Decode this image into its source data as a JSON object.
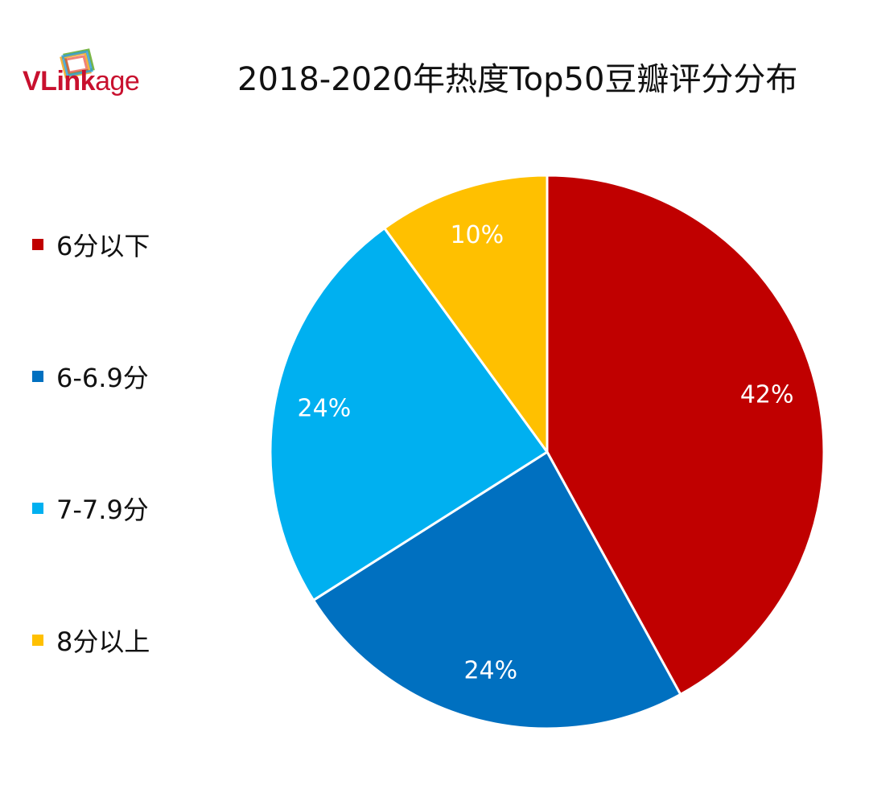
{
  "logo": {
    "brand_part1": "VLink",
    "brand_part2": "age"
  },
  "chart_data": {
    "type": "pie",
    "title": "2018-2020年热度Top50豆瓣评分分布",
    "legend_position": "left",
    "categories": [
      "6分以下",
      "6-6.9分",
      "7-7.9分",
      "8分以上"
    ],
    "values": [
      42,
      24,
      24,
      10
    ],
    "data_labels": [
      "42%",
      "24%",
      "24%",
      "10%"
    ],
    "colors": [
      "#c00000",
      "#0070c0",
      "#00b0f0",
      "#ffc000"
    ],
    "start_angle": "12 o'clock",
    "direction": "clockwise"
  }
}
